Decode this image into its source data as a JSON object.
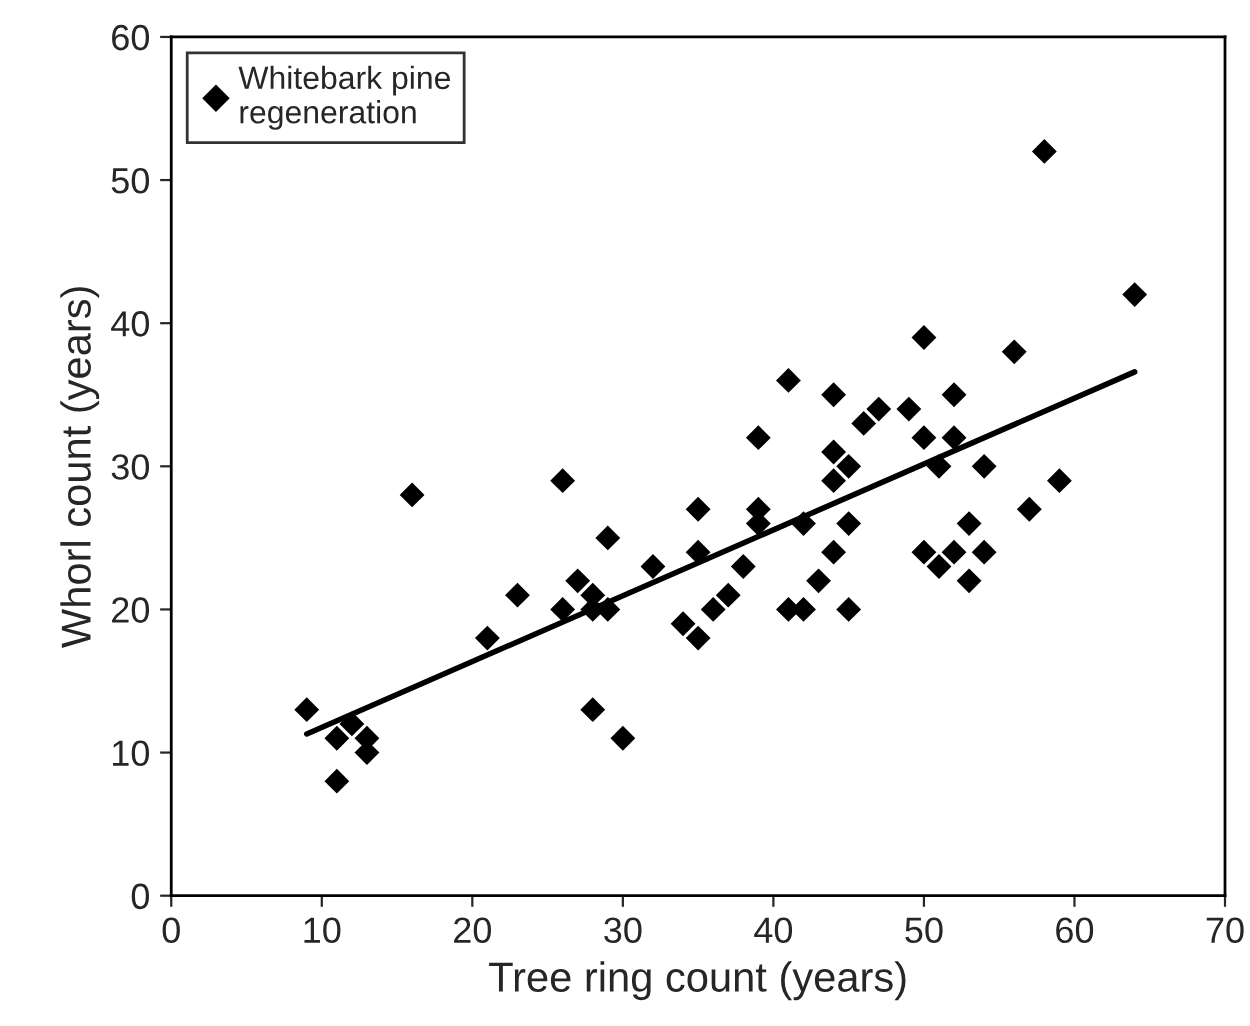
{
  "chart_data": {
    "type": "scatter",
    "xlabel": "Tree ring count (years)",
    "ylabel": "Whorl count (years)",
    "xlim": [
      0,
      70
    ],
    "xticks": [
      0,
      10,
      20,
      30,
      40,
      50,
      60,
      70
    ],
    "ylim": [
      0,
      60
    ],
    "yticks": [
      0,
      10,
      20,
      30,
      40,
      50,
      60
    ],
    "grid": false,
    "legend": "top left",
    "marker": "diamond",
    "series": [
      {
        "name": "Whitebark pine\nregeneration",
        "color": "#000000",
        "x": [
          9,
          11,
          11,
          12,
          13,
          13,
          16,
          21,
          23,
          26,
          26,
          27,
          28,
          28,
          28,
          29,
          29,
          30,
          32,
          34,
          35,
          35,
          35,
          36,
          37,
          38,
          39,
          39,
          39,
          41,
          41,
          42,
          42,
          43,
          44,
          44,
          44,
          44,
          45,
          45,
          45,
          46,
          47,
          49,
          50,
          50,
          50,
          51,
          51,
          52,
          52,
          52,
          53,
          53,
          54,
          54,
          56,
          57,
          58,
          59,
          64
        ],
        "values": [
          13,
          11,
          8,
          12,
          11,
          10,
          28,
          18,
          21,
          29,
          20,
          22,
          21,
          13,
          20,
          25,
          20,
          11,
          23,
          19,
          27,
          24,
          18,
          20,
          21,
          23,
          32,
          27,
          26,
          36,
          20,
          26,
          20,
          22,
          35,
          31,
          29,
          24,
          30,
          26,
          20,
          33,
          34,
          34,
          39,
          32,
          24,
          30,
          23,
          35,
          32,
          24,
          26,
          22,
          30,
          24,
          38,
          27,
          52,
          29,
          42
        ]
      },
      {
        "color": "#000000",
        "type": "line",
        "marker": "none",
        "line_style": "solid",
        "x": [
          9,
          64
        ],
        "values": [
          11.3,
          36.6
        ]
      }
    ]
  }
}
